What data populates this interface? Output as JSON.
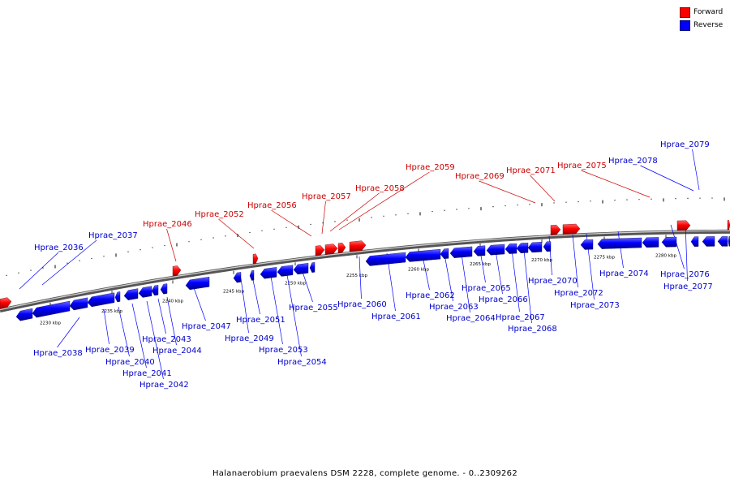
{
  "legend": {
    "forward_label": "Forward",
    "reverse_label": "Reverse",
    "forward_color": "#ff0000",
    "reverse_color": "#0000ff"
  },
  "colors": {
    "forward_label": "#cc0000",
    "reverse_label": "#0000cc",
    "backbone": "#888888",
    "tick_label": "#000000"
  },
  "ticks": [
    "2230 kbp",
    "2235 kbp",
    "2240 kbp",
    "2245 kbp",
    "2250 kbp",
    "2255 kbp",
    "2260 kbp",
    "2265 kbp",
    "2270 kbp",
    "2275 kbp",
    "2280 kbp"
  ],
  "genes": [
    {
      "strand": "forward"
    },
    {
      "strand": "reverse"
    },
    {
      "strand": "reverse"
    },
    {
      "strand": "reverse"
    },
    {
      "strand": "reverse"
    },
    {
      "strand": "reverse"
    },
    {
      "strand": "reverse"
    },
    {
      "strand": "reverse"
    },
    {
      "strand": "reverse"
    },
    {
      "strand": "reverse"
    },
    {
      "strand": "forward"
    },
    {
      "strand": "reverse"
    },
    {
      "strand": "reverse"
    },
    {
      "strand": "reverse"
    },
    {
      "strand": "forward"
    },
    {
      "strand": "reverse"
    },
    {
      "strand": "reverse"
    },
    {
      "strand": "reverse"
    },
    {
      "strand": "reverse"
    },
    {
      "strand": "forward"
    },
    {
      "strand": "forward"
    },
    {
      "strand": "forward"
    },
    {
      "strand": "forward"
    },
    {
      "strand": "reverse"
    },
    {
      "strand": "reverse"
    },
    {
      "strand": "reverse"
    },
    {
      "strand": "reverse"
    },
    {
      "strand": "reverse"
    },
    {
      "strand": "reverse"
    },
    {
      "strand": "reverse"
    },
    {
      "strand": "reverse"
    },
    {
      "strand": "reverse"
    },
    {
      "strand": "reverse"
    },
    {
      "strand": "forward"
    },
    {
      "strand": "forward"
    },
    {
      "strand": "reverse"
    },
    {
      "strand": "reverse"
    },
    {
      "strand": "reverse"
    },
    {
      "strand": "reverse"
    },
    {
      "strand": "forward"
    },
    {
      "strand": "reverse"
    },
    {
      "strand": "reverse"
    },
    {
      "strand": "reverse"
    },
    {
      "strand": "forward"
    },
    {
      "strand": "reverse"
    }
  ],
  "labels": [
    {
      "text": "Hprae_2036",
      "strand": "reverse"
    },
    {
      "text": "Hprae_2037",
      "strand": "reverse"
    },
    {
      "text": "Hprae_2038",
      "strand": "reverse"
    },
    {
      "text": "Hprae_2039",
      "strand": "reverse"
    },
    {
      "text": "Hprae_2040",
      "strand": "reverse"
    },
    {
      "text": "Hprae_2041",
      "strand": "reverse"
    },
    {
      "text": "Hprae_2042",
      "strand": "reverse"
    },
    {
      "text": "Hprae_2043",
      "strand": "reverse"
    },
    {
      "text": "Hprae_2044",
      "strand": "reverse"
    },
    {
      "text": "Hprae_2046",
      "strand": "forward"
    },
    {
      "text": "Hprae_2047",
      "strand": "reverse"
    },
    {
      "text": "Hprae_2049",
      "strand": "reverse"
    },
    {
      "text": "Hprae_2051",
      "strand": "reverse"
    },
    {
      "text": "Hprae_2052",
      "strand": "forward"
    },
    {
      "text": "Hprae_2053",
      "strand": "reverse"
    },
    {
      "text": "Hprae_2054",
      "strand": "reverse"
    },
    {
      "text": "Hprae_2055",
      "strand": "reverse"
    },
    {
      "text": "Hprae_2056",
      "strand": "forward"
    },
    {
      "text": "Hprae_2057",
      "strand": "forward"
    },
    {
      "text": "Hprae_2058",
      "strand": "forward"
    },
    {
      "text": "Hprae_2059",
      "strand": "forward"
    },
    {
      "text": "Hprae_2060",
      "strand": "reverse"
    },
    {
      "text": "Hprae_2061",
      "strand": "reverse"
    },
    {
      "text": "Hprae_2062",
      "strand": "reverse"
    },
    {
      "text": "Hprae_2063",
      "strand": "reverse"
    },
    {
      "text": "Hprae_2064",
      "strand": "reverse"
    },
    {
      "text": "Hprae_2065",
      "strand": "reverse"
    },
    {
      "text": "Hprae_2066",
      "strand": "reverse"
    },
    {
      "text": "Hprae_2067",
      "strand": "reverse"
    },
    {
      "text": "Hprae_2068",
      "strand": "reverse"
    },
    {
      "text": "Hprae_2069",
      "strand": "forward"
    },
    {
      "text": "Hprae_2070",
      "strand": "reverse"
    },
    {
      "text": "Hprae_2071",
      "strand": "forward"
    },
    {
      "text": "Hprae_2072",
      "strand": "reverse"
    },
    {
      "text": "Hprae_2073",
      "strand": "reverse"
    },
    {
      "text": "Hprae_2074",
      "strand": "reverse"
    },
    {
      "text": "Hprae_2075",
      "strand": "forward"
    },
    {
      "text": "Hprae_2076",
      "strand": "reverse"
    },
    {
      "text": "Hprae_2077",
      "strand": "reverse"
    },
    {
      "text": "Hprae_2078",
      "strand": "reverse"
    },
    {
      "text": "Hprae_2079",
      "strand": "reverse"
    }
  ],
  "footer": "Halanaerobium praevalens DSM 2228, complete genome. - 0..2309262"
}
